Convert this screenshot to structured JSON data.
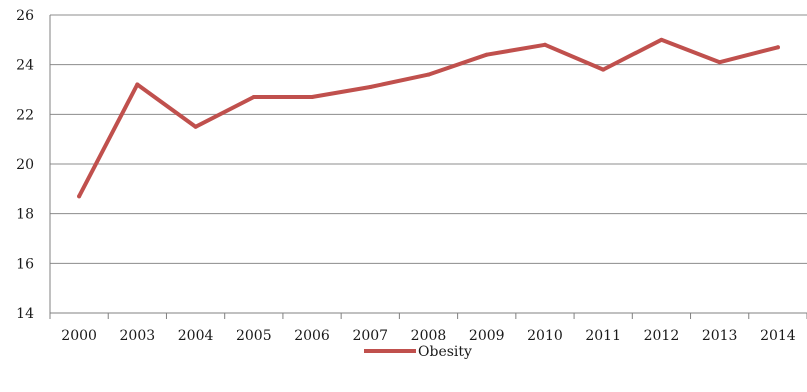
{
  "chart_data": {
    "type": "line",
    "categories": [
      "2000",
      "2003",
      "2004",
      "2005",
      "2006",
      "2007",
      "2008",
      "2009",
      "2010",
      "2011",
      "2012",
      "2013",
      "2014"
    ],
    "series": [
      {
        "name": "Obesity",
        "values": [
          18.7,
          23.2,
          21.5,
          22.7,
          22.7,
          23.1,
          23.6,
          24.4,
          24.8,
          23.8,
          25.0,
          24.1,
          24.7
        ],
        "color": "#c0504d"
      }
    ],
    "title": "",
    "xlabel": "",
    "ylabel": "",
    "ylim": [
      14,
      26
    ],
    "yticks": [
      14,
      16,
      18,
      20,
      22,
      24,
      26
    ],
    "grid": true,
    "legend": "bottom"
  }
}
